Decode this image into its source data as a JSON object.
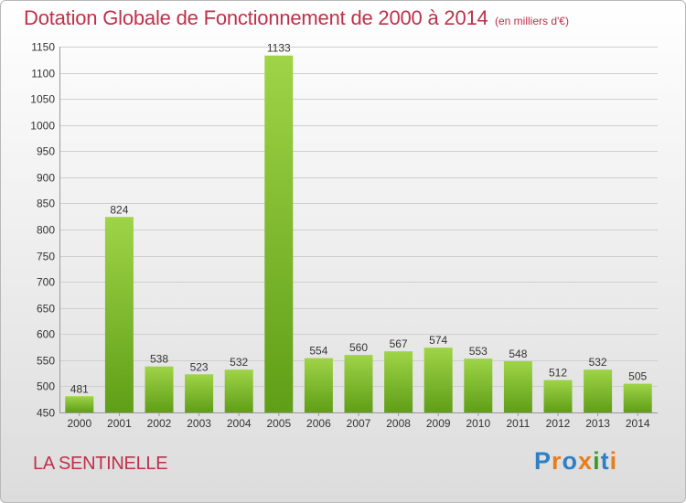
{
  "header": {
    "title": "Dotation Globale de Fonctionnement de 2000 à 2014",
    "subtitle": "(en milliers d'€)"
  },
  "footer": {
    "commune": "LA SENTINELLE",
    "brand": "Proxiti"
  },
  "colors": {
    "title": "#c0304a",
    "bar_light": "#9fd447",
    "bar_dark": "#5f9e17",
    "grid": "#cfcfcf",
    "axis_text": "#333333"
  },
  "chart_data": {
    "type": "bar",
    "title": "Dotation Globale de Fonctionnement de 2000 à 2014",
    "subtitle": "(en milliers d'€)",
    "xlabel": "",
    "ylabel": "",
    "categories": [
      "2000",
      "2001",
      "2002",
      "2003",
      "2004",
      "2005",
      "2006",
      "2007",
      "2008",
      "2009",
      "2010",
      "2011",
      "2012",
      "2013",
      "2014"
    ],
    "values": [
      481,
      824,
      538,
      523,
      532,
      1133,
      554,
      560,
      567,
      574,
      553,
      548,
      512,
      532,
      505
    ],
    "ylim": [
      450,
      1150
    ],
    "yticks": [
      450,
      500,
      550,
      600,
      650,
      700,
      750,
      800,
      850,
      900,
      950,
      1000,
      1050,
      1100,
      1150
    ],
    "grid": true,
    "data_labels": true,
    "legend": "none"
  }
}
